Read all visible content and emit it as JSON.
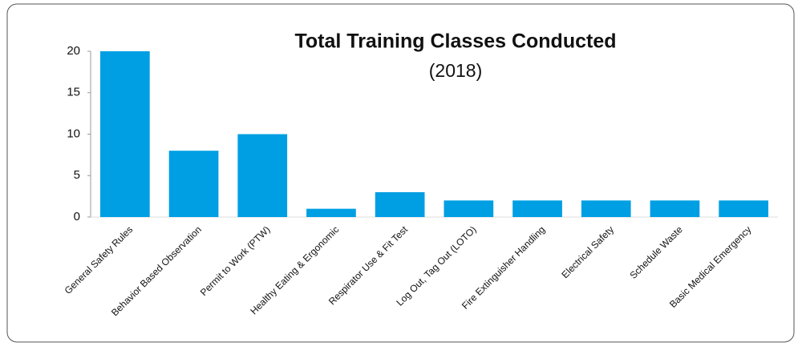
{
  "chart_data": {
    "type": "bar",
    "title": "Total Training Classes Conducted",
    "subtitle": "(2018)",
    "categories": [
      "General Safety Rules",
      "Behavior Based Observation",
      "Permit to Work (PTW)",
      "Healthy Eating & Ergonomic",
      "Respirator Use & Fit Test",
      "Log Out, Tag Out (LOTO)",
      "Fire Extinguisher Handling",
      "Electrical Safety",
      "Schedule Waste",
      "Basic Medical Emergency"
    ],
    "values": [
      20,
      8,
      10,
      1,
      3,
      2,
      2,
      2,
      2,
      2
    ],
    "color": "#009fe3",
    "ylim": [
      0,
      20
    ],
    "yticks": [
      0,
      5,
      10,
      15,
      20
    ],
    "grid": false
  }
}
